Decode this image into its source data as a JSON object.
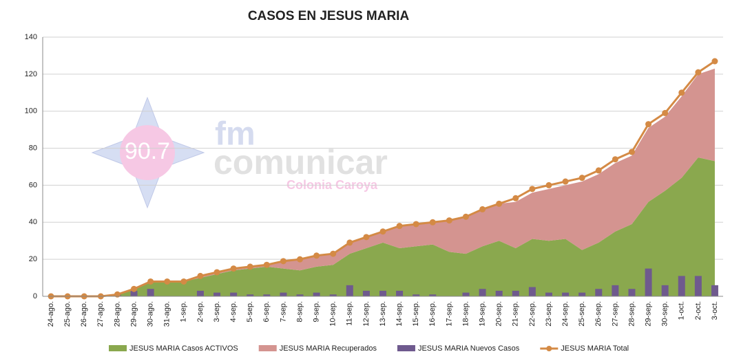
{
  "chart_data": {
    "type": "combo",
    "title": "CASOS EN JESUS MARIA",
    "categories": [
      "24-ago.",
      "25-ago.",
      "26-ago.",
      "27-ago.",
      "28-ago.",
      "29-ago.",
      "30-ago.",
      "31-ago.",
      "1-sep.",
      "2-sep.",
      "3-sep.",
      "4-sep.",
      "5-sep.",
      "6-sep.",
      "7-sep.",
      "8-sep.",
      "9-sep.",
      "10-sep.",
      "11-sep.",
      "12-sep.",
      "13-sep.",
      "14-sep.",
      "15-sep.",
      "16-sep.",
      "17-sep.",
      "18-sep.",
      "19-sep.",
      "20-sep.",
      "21-sep.",
      "22-sep.",
      "23-sep.",
      "24-sep.",
      "25-sep.",
      "26-sep.",
      "27-sep.",
      "28-sep.",
      "29-sep.",
      "30-sep.",
      "1-oct.",
      "2-oct.",
      "3-oct."
    ],
    "series": [
      {
        "name": "JESUS MARIA Casos ACTIVOS",
        "kind": "area",
        "color": "#8aa84e",
        "values": [
          0,
          0,
          0,
          0,
          1,
          4,
          8,
          8,
          8,
          10,
          12,
          14,
          15,
          16,
          15,
          14,
          16,
          17,
          23,
          26,
          29,
          26,
          27,
          28,
          24,
          23,
          27,
          30,
          26,
          31,
          30,
          31,
          25,
          29,
          35,
          39,
          51,
          57,
          64,
          75,
          73
        ]
      },
      {
        "name": "JESUS MARIA Recuperados",
        "kind": "area",
        "color": "#d49490",
        "values": [
          0,
          0,
          0,
          0,
          0,
          0,
          0,
          0,
          0,
          1,
          1,
          1,
          1,
          1,
          4,
          6,
          6,
          6,
          6,
          6,
          6,
          12,
          12,
          12,
          17,
          20,
          20,
          20,
          25,
          25,
          28,
          29,
          37,
          37,
          37,
          37,
          40,
          40,
          44,
          45,
          50
        ]
      },
      {
        "name": "JESUS MARIA Nuevos Casos",
        "kind": "bar",
        "color": "#6f5a8e",
        "values": [
          0,
          0,
          0,
          0,
          1,
          3,
          4,
          0,
          0,
          3,
          2,
          2,
          1,
          1,
          2,
          1,
          2,
          1,
          6,
          3,
          3,
          3,
          1,
          1,
          0,
          2,
          4,
          3,
          3,
          5,
          2,
          2,
          2,
          4,
          6,
          4,
          15,
          6,
          11,
          11,
          6
        ]
      },
      {
        "name": "JESUS MARIA Total",
        "kind": "line",
        "color": "#d48a45",
        "values": [
          0,
          0,
          0,
          0,
          1,
          4,
          8,
          8,
          8,
          11,
          13,
          15,
          16,
          17,
          19,
          20,
          22,
          23,
          29,
          32,
          35,
          38,
          39,
          40,
          41,
          43,
          47,
          50,
          53,
          58,
          60,
          62,
          64,
          68,
          74,
          78,
          93,
          99,
          110,
          121,
          127
        ]
      }
    ],
    "ylim": [
      0,
      140
    ],
    "yticks": [
      0,
      20,
      40,
      60,
      80,
      100,
      120,
      140
    ],
    "grid": true,
    "watermark": {
      "frequency": "90.7",
      "brand_top": "fm",
      "brand": "comunicar",
      "place": "Colonia Caroya"
    }
  }
}
